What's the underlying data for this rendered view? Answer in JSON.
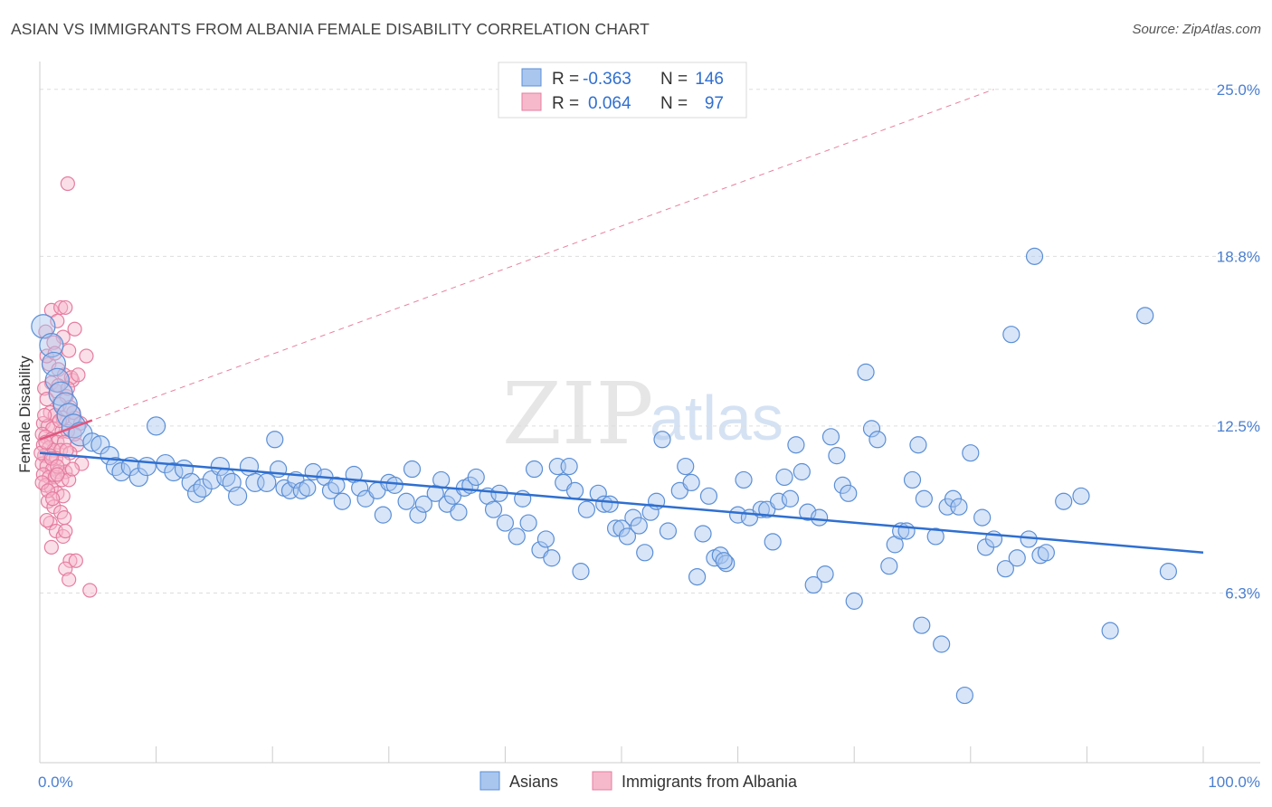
{
  "title": "ASIAN VS IMMIGRANTS FROM ALBANIA FEMALE DISABILITY CORRELATION CHART",
  "source": "Source: ZipAtlas.com",
  "watermark": {
    "zip": "ZIP",
    "atlas": "atlas"
  },
  "colors": {
    "blue_fill": "#a9c6ef",
    "blue_stroke": "#5b8fd6",
    "blue_line": "#2f6fd0",
    "pink_fill": "#f6b9cc",
    "pink_stroke": "#e57da0",
    "pink_line": "#e0577f",
    "grid": "#dddddd",
    "tick_text": "#4a7fd0"
  },
  "legend_top": {
    "rows": [
      {
        "r_label": "R =",
        "r_value": "-0.363",
        "n_label": "N =",
        "n_value": "146"
      },
      {
        "r_label": "R =",
        "r_value": "0.064",
        "n_label": "N =",
        "n_value": "97"
      }
    ]
  },
  "legend_bottom": {
    "asians": "Asians",
    "albania": "Immigrants from Albania"
  },
  "chart_data": {
    "type": "scatter",
    "xlabel": "",
    "ylabel": "Female Disability",
    "xlim": [
      0,
      100
    ],
    "ylim": [
      0,
      25.9
    ],
    "x_tick_labels": {
      "min": "0.0%",
      "max": "100.0%"
    },
    "y_ticks": [
      {
        "value": 6.3,
        "label": "6.3%"
      },
      {
        "value": 12.5,
        "label": "12.5%"
      },
      {
        "value": 18.8,
        "label": "18.8%"
      },
      {
        "value": 25.0,
        "label": "25.0%"
      }
    ],
    "series": [
      {
        "name": "Asians",
        "r": -0.363,
        "n": 146,
        "trend": {
          "x0": 0,
          "y0": 11.5,
          "x1": 100,
          "y1": 7.8,
          "style": "solid"
        },
        "points": [
          [
            0.3,
            16.2
          ],
          [
            1.0,
            15.5
          ],
          [
            1.2,
            14.8
          ],
          [
            1.5,
            14.2
          ],
          [
            1.8,
            13.7
          ],
          [
            2.2,
            13.3
          ],
          [
            2.5,
            12.9
          ],
          [
            2.9,
            12.5
          ],
          [
            3.5,
            12.2
          ],
          [
            4.5,
            11.9
          ],
          [
            5.2,
            11.8
          ],
          [
            6.0,
            11.4
          ],
          [
            6.5,
            11.0
          ],
          [
            7.0,
            10.8
          ],
          [
            7.8,
            11.0
          ],
          [
            8.5,
            10.6
          ],
          [
            9.2,
            11.0
          ],
          [
            10.0,
            12.5
          ],
          [
            10.8,
            11.1
          ],
          [
            11.5,
            10.8
          ],
          [
            12.4,
            10.9
          ],
          [
            13.0,
            10.4
          ],
          [
            13.5,
            10.0
          ],
          [
            14.0,
            10.2
          ],
          [
            14.8,
            10.5
          ],
          [
            15.5,
            11.0
          ],
          [
            16.0,
            10.6
          ],
          [
            16.5,
            10.4
          ],
          [
            17.0,
            9.9
          ],
          [
            18.0,
            11.0
          ],
          [
            18.5,
            10.4
          ],
          [
            19.5,
            10.4
          ],
          [
            20.2,
            12.0
          ],
          [
            20.5,
            10.9
          ],
          [
            21.0,
            10.2
          ],
          [
            21.5,
            10.1
          ],
          [
            22.0,
            10.5
          ],
          [
            22.5,
            10.1
          ],
          [
            23.0,
            10.2
          ],
          [
            23.5,
            10.8
          ],
          [
            24.5,
            10.6
          ],
          [
            25.0,
            10.1
          ],
          [
            25.5,
            10.3
          ],
          [
            26.0,
            9.7
          ],
          [
            27.0,
            10.7
          ],
          [
            27.5,
            10.2
          ],
          [
            28.0,
            9.8
          ],
          [
            29.0,
            10.1
          ],
          [
            29.5,
            9.2
          ],
          [
            30.0,
            10.4
          ],
          [
            30.5,
            10.3
          ],
          [
            31.5,
            9.7
          ],
          [
            32.0,
            10.9
          ],
          [
            32.5,
            9.2
          ],
          [
            33.0,
            9.6
          ],
          [
            34.0,
            10.0
          ],
          [
            34.5,
            10.5
          ],
          [
            35.0,
            9.6
          ],
          [
            35.5,
            9.9
          ],
          [
            36.0,
            9.3
          ],
          [
            36.5,
            10.2
          ],
          [
            37.0,
            10.3
          ],
          [
            37.5,
            10.6
          ],
          [
            38.5,
            9.9
          ],
          [
            39.0,
            9.4
          ],
          [
            39.5,
            10.0
          ],
          [
            40.0,
            8.9
          ],
          [
            41.0,
            8.4
          ],
          [
            41.5,
            9.8
          ],
          [
            42.0,
            8.9
          ],
          [
            42.5,
            10.9
          ],
          [
            43.0,
            7.9
          ],
          [
            43.5,
            8.3
          ],
          [
            44.5,
            11.0
          ],
          [
            45.0,
            10.4
          ],
          [
            45.5,
            11.0
          ],
          [
            46.0,
            10.1
          ],
          [
            46.5,
            7.1
          ],
          [
            47.0,
            9.4
          ],
          [
            48.0,
            10.0
          ],
          [
            48.5,
            9.6
          ],
          [
            49.0,
            9.6
          ],
          [
            49.5,
            8.7
          ],
          [
            50.0,
            8.7
          ],
          [
            50.5,
            8.4
          ],
          [
            51.0,
            9.1
          ],
          [
            51.5,
            8.8
          ],
          [
            52.0,
            7.8
          ],
          [
            52.5,
            9.3
          ],
          [
            53.0,
            9.7
          ],
          [
            53.5,
            12.0
          ],
          [
            54.0,
            8.6
          ],
          [
            55.0,
            10.1
          ],
          [
            55.5,
            11.0
          ],
          [
            56.0,
            10.4
          ],
          [
            56.5,
            6.9
          ],
          [
            57.0,
            8.5
          ],
          [
            57.5,
            9.9
          ],
          [
            58.0,
            7.6
          ],
          [
            58.5,
            7.7
          ],
          [
            59.0,
            7.4
          ],
          [
            60.0,
            9.2
          ],
          [
            60.5,
            10.5
          ],
          [
            61.0,
            9.1
          ],
          [
            62.0,
            9.4
          ],
          [
            62.5,
            9.4
          ],
          [
            63.0,
            8.2
          ],
          [
            63.5,
            9.7
          ],
          [
            64.0,
            10.6
          ],
          [
            64.5,
            9.8
          ],
          [
            65.0,
            11.8
          ],
          [
            65.5,
            10.8
          ],
          [
            66.0,
            9.3
          ],
          [
            67.0,
            9.1
          ],
          [
            67.5,
            7.0
          ],
          [
            68.0,
            12.1
          ],
          [
            68.5,
            11.4
          ],
          [
            69.0,
            10.3
          ],
          [
            69.5,
            10.0
          ],
          [
            70.0,
            6.0
          ],
          [
            71.0,
            14.5
          ],
          [
            71.5,
            12.4
          ],
          [
            72.0,
            12.0
          ],
          [
            73.0,
            7.3
          ],
          [
            73.5,
            8.1
          ],
          [
            74.0,
            8.6
          ],
          [
            74.5,
            8.6
          ],
          [
            75.0,
            10.5
          ],
          [
            75.5,
            11.8
          ],
          [
            76.0,
            9.8
          ],
          [
            77.0,
            8.4
          ],
          [
            77.5,
            4.4
          ],
          [
            78.0,
            9.5
          ],
          [
            78.5,
            9.8
          ],
          [
            79.0,
            9.5
          ],
          [
            80.0,
            11.5
          ],
          [
            81.0,
            9.1
          ],
          [
            81.3,
            8.0
          ],
          [
            82.0,
            8.3
          ],
          [
            83.0,
            7.2
          ],
          [
            83.5,
            15.9
          ],
          [
            84.0,
            7.6
          ],
          [
            85.0,
            8.3
          ],
          [
            86.0,
            7.7
          ],
          [
            86.5,
            7.8
          ],
          [
            88.0,
            9.7
          ],
          [
            89.5,
            9.9
          ],
          [
            92.0,
            4.9
          ],
          [
            95.0,
            16.6
          ],
          [
            97.0,
            7.1
          ],
          [
            79.5,
            2.5
          ],
          [
            85.5,
            18.8
          ],
          [
            75.8,
            5.1
          ],
          [
            66.5,
            6.6
          ],
          [
            58.8,
            7.5
          ],
          [
            44.0,
            7.6
          ]
        ]
      },
      {
        "name": "Immigrants from Albania",
        "r": 0.064,
        "n": 97,
        "trend": {
          "x0": 0,
          "y0": 12.0,
          "x1": 82,
          "y1": 25.0,
          "style": "dashed",
          "solid_segment_to_x": 4.5
        },
        "points": [
          [
            2.4,
            21.5
          ],
          [
            1.0,
            16.8
          ],
          [
            1.5,
            16.4
          ],
          [
            1.8,
            16.9
          ],
          [
            2.2,
            16.9
          ],
          [
            3.0,
            16.1
          ],
          [
            2.0,
            15.8
          ],
          [
            0.5,
            16.0
          ],
          [
            1.2,
            15.6
          ],
          [
            2.5,
            15.3
          ],
          [
            4.0,
            15.1
          ],
          [
            0.8,
            14.8
          ],
          [
            1.6,
            14.6
          ],
          [
            2.1,
            14.4
          ],
          [
            2.8,
            14.2
          ],
          [
            1.0,
            14.1
          ],
          [
            0.4,
            13.9
          ],
          [
            1.4,
            13.8
          ],
          [
            2.3,
            13.6
          ],
          [
            0.6,
            13.5
          ],
          [
            1.7,
            13.3
          ],
          [
            2.6,
            13.2
          ],
          [
            0.9,
            13.0
          ],
          [
            1.3,
            12.9
          ],
          [
            2.0,
            12.8
          ],
          [
            3.0,
            12.8
          ],
          [
            0.3,
            12.6
          ],
          [
            0.7,
            12.5
          ],
          [
            1.1,
            12.4
          ],
          [
            1.9,
            12.3
          ],
          [
            2.4,
            12.3
          ],
          [
            0.2,
            12.2
          ],
          [
            0.5,
            12.1
          ],
          [
            1.0,
            12.0
          ],
          [
            1.5,
            11.9
          ],
          [
            2.1,
            11.9
          ],
          [
            3.2,
            11.8
          ],
          [
            0.3,
            11.8
          ],
          [
            0.8,
            11.7
          ],
          [
            1.2,
            11.6
          ],
          [
            1.8,
            11.6
          ],
          [
            2.6,
            11.5
          ],
          [
            0.4,
            11.4
          ],
          [
            0.9,
            11.4
          ],
          [
            1.4,
            11.3
          ],
          [
            2.0,
            11.2
          ],
          [
            3.6,
            11.1
          ],
          [
            0.2,
            11.1
          ],
          [
            0.6,
            11.0
          ],
          [
            1.1,
            10.9
          ],
          [
            1.6,
            10.8
          ],
          [
            2.2,
            10.8
          ],
          [
            0.3,
            10.7
          ],
          [
            0.8,
            10.6
          ],
          [
            1.3,
            10.6
          ],
          [
            1.9,
            10.5
          ],
          [
            2.5,
            10.5
          ],
          [
            0.5,
            10.3
          ],
          [
            1.0,
            10.2
          ],
          [
            1.5,
            10.0
          ],
          [
            2.0,
            9.9
          ],
          [
            0.7,
            9.7
          ],
          [
            1.2,
            9.5
          ],
          [
            1.8,
            9.3
          ],
          [
            2.1,
            9.1
          ],
          [
            0.9,
            8.9
          ],
          [
            1.4,
            8.6
          ],
          [
            2.0,
            8.4
          ],
          [
            1.0,
            8.0
          ],
          [
            2.6,
            7.5
          ],
          [
            2.2,
            7.2
          ],
          [
            2.5,
            6.8
          ],
          [
            4.3,
            6.4
          ],
          [
            3.1,
            7.5
          ],
          [
            1.6,
            14.0
          ],
          [
            2.7,
            14.3
          ],
          [
            0.6,
            15.1
          ],
          [
            1.3,
            15.2
          ],
          [
            3.3,
            14.4
          ],
          [
            2.9,
            13.0
          ],
          [
            0.4,
            12.9
          ],
          [
            3.5,
            12.6
          ],
          [
            1.7,
            12.7
          ],
          [
            2.3,
            11.6
          ],
          [
            0.1,
            11.5
          ],
          [
            0.5,
            11.9
          ],
          [
            1.0,
            11.3
          ],
          [
            1.5,
            11.0
          ],
          [
            2.8,
            10.9
          ],
          [
            0.2,
            10.4
          ],
          [
            0.7,
            10.1
          ],
          [
            1.1,
            9.8
          ],
          [
            0.6,
            9.0
          ],
          [
            2.2,
            8.6
          ],
          [
            1.5,
            10.7
          ],
          [
            2.4,
            13.9
          ],
          [
            3.0,
            12.2
          ]
        ]
      }
    ]
  }
}
